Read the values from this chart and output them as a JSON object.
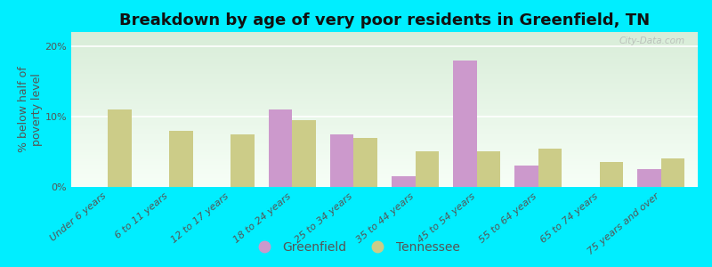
{
  "title": "Breakdown by age of very poor residents in Greenfield, TN",
  "ylabel": "% below half of\npoverty level",
  "categories": [
    "Under 6 years",
    "6 to 11 years",
    "12 to 17 years",
    "18 to 24 years",
    "25 to 34 years",
    "35 to 44 years",
    "45 to 54 years",
    "55 to 64 years",
    "65 to 74 years",
    "75 years and over"
  ],
  "greenfield": [
    0.0,
    0.0,
    0.0,
    11.0,
    7.5,
    1.5,
    18.0,
    3.0,
    0.0,
    2.5
  ],
  "tennessee": [
    11.0,
    8.0,
    7.5,
    9.5,
    7.0,
    5.0,
    5.0,
    5.5,
    3.5,
    4.0
  ],
  "greenfield_color": "#cc99cc",
  "tennessee_color": "#cccc88",
  "background_outer": "#00eeff",
  "background_plot_top": "#ddeedd",
  "background_plot_bottom": "#f8fff8",
  "title_fontsize": 13,
  "ylabel_fontsize": 9,
  "tick_fontsize": 8,
  "legend_fontsize": 10,
  "bar_width": 0.38,
  "ylim": [
    0,
    22
  ],
  "yticks": [
    0,
    10,
    20
  ],
  "ytick_labels": [
    "0%",
    "10%",
    "20%"
  ],
  "watermark": "City-Data.com"
}
